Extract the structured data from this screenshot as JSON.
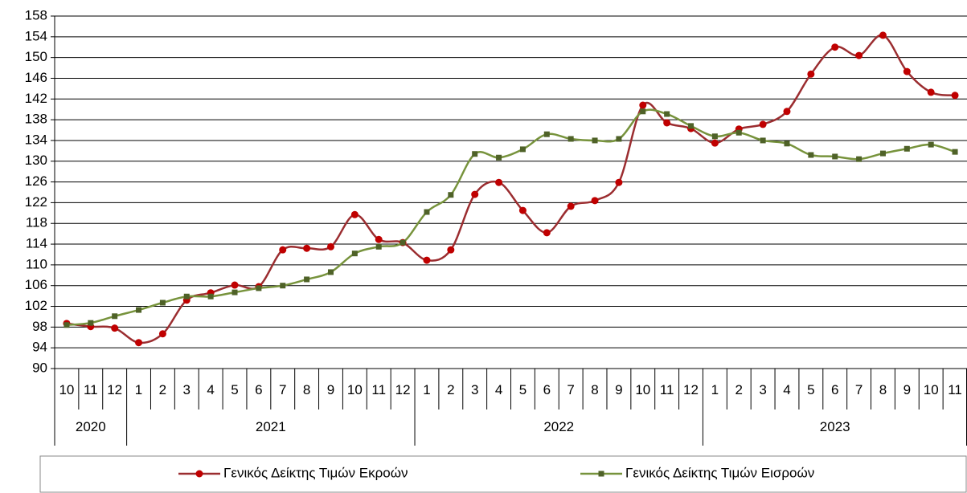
{
  "chart_data": {
    "type": "line",
    "category_groups": [
      {
        "name": "2020",
        "categories": [
          "10",
          "11",
          "12"
        ]
      },
      {
        "name": "2021",
        "categories": [
          "1",
          "2",
          "3",
          "4",
          "5",
          "6",
          "7",
          "8",
          "9",
          "10",
          "11",
          "12"
        ]
      },
      {
        "name": "2022",
        "categories": [
          "1",
          "2",
          "3",
          "4",
          "5",
          "6",
          "7",
          "8",
          "9",
          "10",
          "11",
          "12"
        ]
      },
      {
        "name": "2023",
        "categories": [
          "1",
          "2",
          "3",
          "4",
          "5",
          "6",
          "7",
          "8",
          "9",
          "10",
          "11"
        ]
      }
    ],
    "series": [
      {
        "name": "Γενικός Δείκτης Τιμών Εκροών",
        "color": "#9b2d30",
        "marker_color": "#c00000",
        "marker": "circle",
        "values": [
          98.7,
          98.1,
          97.8,
          95.0,
          96.7,
          103.2,
          104.6,
          106.1,
          105.8,
          112.9,
          113.2,
          113.5,
          119.7,
          114.9,
          114.3,
          110.9,
          112.9,
          123.6,
          125.9,
          120.5,
          116.2,
          121.3,
          122.4,
          125.9,
          140.8,
          137.4,
          136.3,
          133.5,
          136.2,
          137.1,
          139.6,
          146.8,
          152.0,
          150.4,
          154.3,
          147.3,
          143.3,
          142.7
        ]
      },
      {
        "name": "Γενικός Δείκτης Τιμών Εισροών",
        "color": "#77933c",
        "marker_color": "#4f6228",
        "marker": "square",
        "values": [
          98.4,
          98.8,
          100.1,
          101.3,
          102.7,
          103.9,
          103.9,
          104.7,
          105.5,
          106.0,
          107.2,
          108.6,
          112.2,
          113.5,
          114.3,
          120.2,
          123.5,
          131.4,
          130.7,
          132.3,
          135.2,
          134.3,
          134.0,
          134.3,
          139.6,
          139.1,
          136.8,
          134.8,
          135.5,
          134.0,
          133.4,
          131.2,
          130.9,
          130.4,
          131.5,
          132.4,
          133.2,
          131.8
        ]
      }
    ],
    "ylim": [
      90,
      158
    ],
    "yticks": [
      90,
      94,
      98,
      102,
      106,
      110,
      114,
      118,
      122,
      126,
      130,
      134,
      138,
      142,
      146,
      150,
      154,
      158
    ],
    "grid": true,
    "smooth": true,
    "legend": "bottom"
  }
}
